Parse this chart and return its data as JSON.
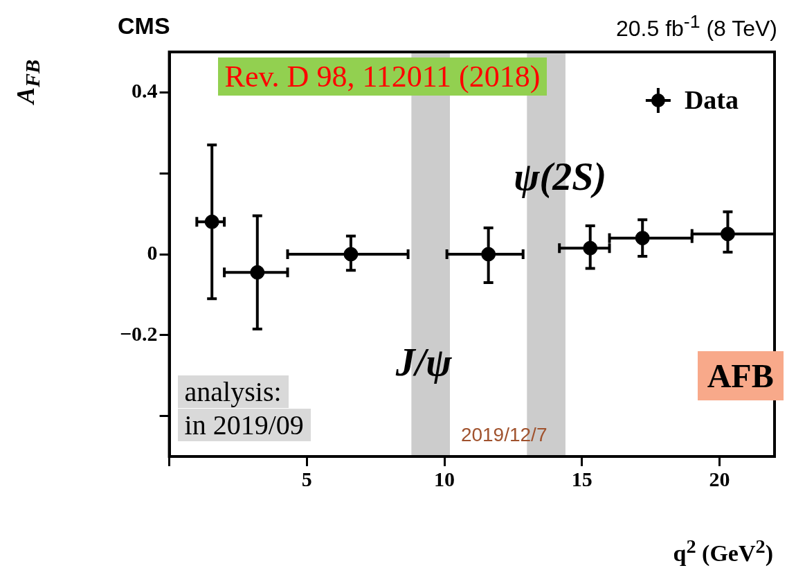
{
  "chart_data": {
    "type": "scatter",
    "title": "CMS",
    "subtitle": "20.5 fb$^{-1}$ (8 TeV)",
    "xlabel": "q$^{2}$ (GeV$^{2}$)",
    "ylabel": "A$_{FB}$",
    "x": [
      1.55,
      3.2,
      6.6,
      11.6,
      15.3,
      17.2,
      20.3
    ],
    "series": [
      {
        "name": "Data",
        "color": "#000000",
        "values": [
          0.08,
          -0.045,
          0,
          0,
          0.015,
          0.04,
          0.05
        ],
        "errors": [
          [
            -0.11,
            0.27
          ],
          [
            -0.185,
            0.095
          ],
          [
            -0.04,
            0.045
          ],
          [
            -0.07,
            0.065
          ],
          [
            -0.035,
            0.07
          ],
          [
            -0.005,
            0.085
          ],
          [
            0.005,
            0.105
          ]
        ],
        "xerrors": [
          [
            1,
            2
          ],
          [
            2,
            4.3
          ],
          [
            4.3,
            8.68
          ],
          [
            10.09,
            12.86
          ],
          [
            14.18,
            16
          ],
          [
            16,
            19
          ],
          [
            19,
            22
          ]
        ]
      }
    ],
    "xlim": [
      0,
      22
    ],
    "xticks": [
      {
        "value": 0,
        "label": null
      },
      5,
      10,
      15,
      20
    ],
    "ylim": [
      -0.5,
      0.5
    ],
    "yticks": [
      {
        "value": -0.4,
        "label": null
      },
      {
        "value": -0.2,
        "label": "−0.2"
      },
      0,
      {
        "value": 0.2,
        "label": null
      },
      0.4
    ],
    "bands": [
      {
        "axis": "x",
        "from": 8.8,
        "to": 10.2,
        "label": "J/ψ",
        "color": "#cccccc"
      },
      {
        "axis": "x",
        "from": 13.0,
        "to": 14.4,
        "label": "ψ(2S)",
        "color": "#cccccc"
      }
    ],
    "annotations": [
      "Rev. D  98, 112011 (2018)",
      "AFB",
      "analysis:",
      "in 2019/09",
      "2019/12/7"
    ],
    "legend": "top right",
    "marker": "circle",
    "grid": false
  }
}
